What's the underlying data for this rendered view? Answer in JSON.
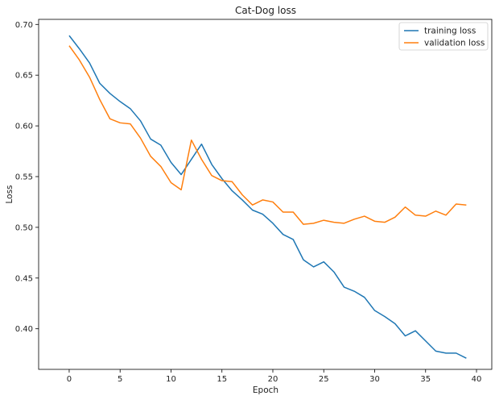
{
  "chart_data": {
    "type": "line",
    "title": "Cat-Dog loss",
    "xlabel": "Epoch",
    "ylabel": "Loss",
    "xlim": [
      -3,
      41.5
    ],
    "ylim": [
      0.36,
      0.705
    ],
    "xticks": [
      0,
      5,
      10,
      15,
      20,
      25,
      30,
      35,
      40
    ],
    "yticks": [
      0.4,
      0.45,
      0.5,
      0.55,
      0.6,
      0.65,
      0.7
    ],
    "grid": false,
    "legend_position": "top-right",
    "x": [
      0,
      1,
      2,
      3,
      4,
      5,
      6,
      7,
      8,
      9,
      10,
      11,
      12,
      13,
      14,
      15,
      16,
      17,
      18,
      19,
      20,
      21,
      22,
      23,
      24,
      25,
      26,
      27,
      28,
      29,
      30,
      31,
      32,
      33,
      34,
      35,
      36,
      37,
      38,
      39
    ],
    "series": [
      {
        "name": "training loss",
        "color": "#1f77b4",
        "values": [
          0.689,
          0.676,
          0.662,
          0.642,
          0.632,
          0.624,
          0.617,
          0.605,
          0.587,
          0.581,
          0.564,
          0.552,
          0.567,
          0.582,
          0.562,
          0.548,
          0.536,
          0.527,
          0.517,
          0.513,
          0.504,
          0.493,
          0.488,
          0.468,
          0.461,
          0.466,
          0.456,
          0.441,
          0.437,
          0.431,
          0.418,
          0.412,
          0.405,
          0.393,
          0.398,
          0.388,
          0.378,
          0.376,
          0.376,
          0.371
        ]
      },
      {
        "name": "validation loss",
        "color": "#ff7f0e",
        "values": [
          0.679,
          0.665,
          0.648,
          0.626,
          0.607,
          0.603,
          0.602,
          0.588,
          0.57,
          0.56,
          0.544,
          0.537,
          0.586,
          0.567,
          0.551,
          0.546,
          0.545,
          0.532,
          0.522,
          0.527,
          0.525,
          0.515,
          0.515,
          0.503,
          0.504,
          0.507,
          0.505,
          0.504,
          0.508,
          0.511,
          0.506,
          0.505,
          0.51,
          0.52,
          0.512,
          0.511,
          0.516,
          0.512,
          0.523,
          0.522
        ]
      }
    ]
  }
}
